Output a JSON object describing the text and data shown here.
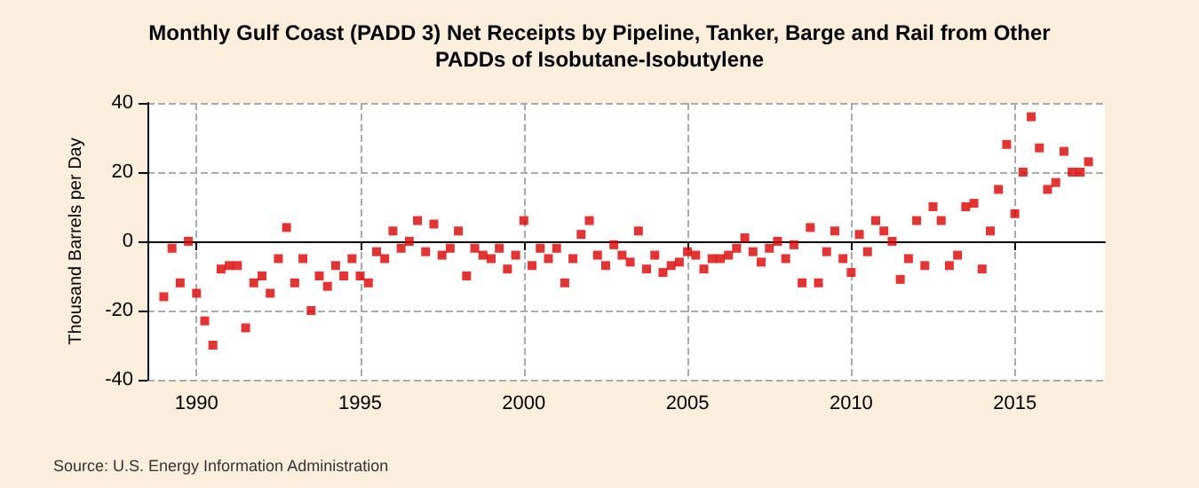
{
  "chart_data": {
    "type": "scatter",
    "title": "Monthly Gulf Coast (PADD 3) Net Receipts by Pipeline, Tanker, Barge and Rail from Other\nPADDs of Isobutane-Isobutylene",
    "ylabel": "Thousand Barrels per Day",
    "annotations": [
      "Source: U.S. Energy Information Administration"
    ],
    "x": [
      "1989-01",
      "1989-04",
      "1989-07",
      "1989-10",
      "1990-01",
      "1990-04",
      "1990-07",
      "1990-10",
      "1991-01",
      "1991-04",
      "1991-07",
      "1991-10",
      "1992-01",
      "1992-04",
      "1992-07",
      "1992-10",
      "1993-01",
      "1993-04",
      "1993-07",
      "1993-10",
      "1994-01",
      "1994-04",
      "1994-07",
      "1994-10",
      "1995-01",
      "1995-04",
      "1995-07",
      "1995-10",
      "1996-01",
      "1996-04",
      "1996-07",
      "1996-10",
      "1997-01",
      "1997-04",
      "1997-07",
      "1997-10",
      "1998-01",
      "1998-04",
      "1998-07",
      "1998-10",
      "1999-01",
      "1999-04",
      "1999-07",
      "1999-10",
      "2000-01",
      "2000-04",
      "2000-07",
      "2000-10",
      "2001-01",
      "2001-04",
      "2001-07",
      "2001-10",
      "2002-01",
      "2002-04",
      "2002-07",
      "2002-10",
      "2003-01",
      "2003-04",
      "2003-07",
      "2003-10",
      "2004-01",
      "2004-04",
      "2004-07",
      "2004-10",
      "2005-01",
      "2005-04",
      "2005-07",
      "2005-10",
      "2006-01",
      "2006-04",
      "2006-07",
      "2006-10",
      "2007-01",
      "2007-04",
      "2007-07",
      "2007-10",
      "2008-01",
      "2008-04",
      "2008-07",
      "2008-10",
      "2009-01",
      "2009-04",
      "2009-07",
      "2009-10",
      "2010-01",
      "2010-04",
      "2010-07",
      "2010-10",
      "2011-01",
      "2011-04",
      "2011-07",
      "2011-10",
      "2012-01",
      "2012-04",
      "2012-07",
      "2012-10",
      "2013-01",
      "2013-04",
      "2013-07",
      "2013-10",
      "2014-01",
      "2014-04",
      "2014-07",
      "2014-10",
      "2015-01",
      "2015-04",
      "2015-07",
      "2015-10",
      "2016-01",
      "2016-04",
      "2016-07",
      "2016-10",
      "2017-01",
      "2017-04"
    ],
    "series": [
      {
        "color": "#dd0000",
        "values": [
          -16,
          -2,
          -12,
          0,
          -15,
          -23,
          -30,
          -8,
          -7,
          -7,
          -25,
          -12,
          -10,
          -15,
          -5,
          4,
          -12,
          -5,
          -20,
          -10,
          -13,
          -7,
          -10,
          -5,
          -10,
          -12,
          -3,
          -5,
          3,
          -2,
          0,
          6,
          -3,
          5,
          -4,
          -2,
          3,
          -10,
          -2,
          -4,
          -5,
          -2,
          -8,
          -4,
          6,
          -7,
          -2,
          -5,
          -2,
          -12,
          -5,
          2,
          6,
          -4,
          -7,
          -1,
          -4,
          -6,
          3,
          -8,
          -4,
          -9,
          -7,
          -6,
          -3,
          -4,
          -8,
          -5,
          -5,
          -4,
          -2,
          1,
          -3,
          -6,
          -2,
          0,
          -5,
          -1,
          -12,
          4,
          -12,
          -3,
          3,
          -5,
          -9,
          2,
          -3,
          6,
          3,
          0,
          -11,
          -5,
          6,
          -7,
          10,
          6,
          -7,
          -4,
          10,
          11,
          -8,
          3,
          15,
          28,
          8,
          20,
          36,
          27,
          15,
          17,
          26,
          20,
          20,
          23
        ]
      }
    ],
    "xlim": [
      "1988-07",
      "2017-10"
    ],
    "xticks": [
      "1990",
      "1995",
      "2000",
      "2005",
      "2010",
      "2015"
    ],
    "ylim": [
      -40,
      40
    ],
    "yticks": [
      -40,
      -20,
      0,
      20,
      40
    ],
    "grid": true,
    "marker": "square"
  }
}
